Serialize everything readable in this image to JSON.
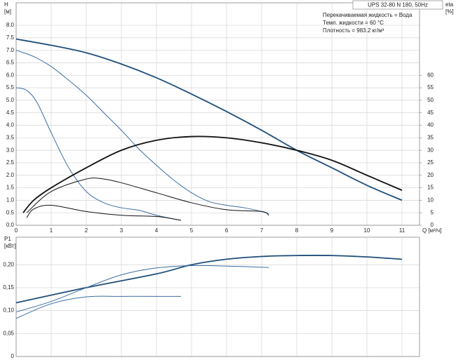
{
  "chart_data": [
    {
      "type": "line",
      "title": "UPS 32-80 N 180, 50Hz",
      "annotations": [
        "Перекачиваемая жидкость = Вода",
        "Темп. жидкости = 60 °C",
        "Плотность = 983.2 кг/м³"
      ],
      "xlabel": "Q [м³/ч]",
      "ylabel": [
        "H",
        "[м]"
      ],
      "y2label": [
        "eta",
        "[%]"
      ],
      "xlim": [
        0,
        11.5
      ],
      "xticks": [
        0,
        1,
        2,
        3,
        4,
        5,
        6,
        7,
        8,
        9,
        10,
        11
      ],
      "ylim": [
        0,
        8.9
      ],
      "yticks": [
        {
          "value": 0,
          "label": "0.0"
        },
        0.5,
        {
          "value": 1,
          "label": "1.0"
        },
        1.5,
        {
          "value": 2,
          "label": "2.0"
        },
        2.5,
        {
          "value": 3,
          "label": "3.0"
        },
        3.5,
        {
          "value": 4,
          "label": "4.0"
        },
        4.5,
        {
          "value": 5,
          "label": "5.0"
        },
        5.5,
        {
          "value": 6,
          "label": "6.0"
        },
        6.5,
        {
          "value": 7,
          "label": "7.0"
        },
        7.5,
        {
          "value": 8,
          "label": "8.0"
        }
      ],
      "y2lim": [
        0,
        89
      ],
      "y2ticks": [
        0,
        5,
        10,
        15,
        20,
        25,
        30,
        35,
        40,
        45,
        50,
        55,
        60
      ],
      "grid": true,
      "series": [
        {
          "color": "#1f4e79",
          "width": 1.8,
          "x": [
            0,
            1,
            2,
            3,
            4,
            5,
            6,
            7,
            8,
            9,
            10,
            11
          ],
          "values": [
            7.45,
            7.2,
            6.9,
            6.45,
            5.9,
            5.25,
            4.55,
            3.8,
            3.0,
            2.3,
            1.6,
            1.0
          ]
        },
        {
          "color": "#3a6ea5",
          "width": 1,
          "x": [
            0,
            0.5,
            1,
            1.5,
            2,
            2.5,
            3,
            3.5,
            4,
            4.5,
            5,
            5.5,
            6,
            6.5,
            7,
            7.2
          ],
          "values": [
            7.0,
            6.75,
            6.35,
            5.8,
            5.2,
            4.5,
            3.8,
            3.05,
            2.4,
            1.8,
            1.3,
            0.95,
            0.8,
            0.7,
            0.55,
            0.45
          ]
        },
        {
          "color": "#3a6ea5",
          "width": 1,
          "x": [
            0,
            0.3,
            0.6,
            1,
            1.5,
            2,
            2.5,
            3,
            3.5,
            4,
            4.5,
            4.7
          ],
          "values": [
            5.5,
            5.4,
            4.9,
            3.7,
            2.3,
            1.35,
            0.9,
            0.7,
            0.6,
            0.4,
            0.25,
            0.2
          ]
        },
        {
          "color": "#111111",
          "width": 1.8,
          "axis": "y2",
          "x": [
            0.2,
            0.5,
            1,
            2,
            3,
            4,
            5,
            6,
            7,
            8,
            9,
            10,
            11
          ],
          "values": [
            5,
            10,
            15,
            23,
            30,
            34,
            35.5,
            35,
            33,
            30,
            26,
            20,
            14
          ]
        },
        {
          "color": "#111111",
          "width": 1,
          "axis": "y2",
          "x": [
            0.3,
            1,
            2,
            2.5,
            3,
            4,
            5,
            6,
            7,
            7.2
          ],
          "values": [
            5,
            13.5,
            18.5,
            18.5,
            17,
            13,
            9,
            6.2,
            5.5,
            4
          ]
        },
        {
          "color": "#111111",
          "width": 1,
          "axis": "y2",
          "x": [
            0.3,
            0.5,
            1,
            2,
            3,
            4,
            4.5,
            4.7
          ],
          "values": [
            3,
            6.5,
            8,
            5.5,
            4,
            3.5,
            2.5,
            2
          ]
        }
      ]
    },
    {
      "type": "line",
      "ylabel": [
        "P1",
        "[кВт]"
      ],
      "xlim": [
        0,
        11.5
      ],
      "ylim": [
        0,
        0.26
      ],
      "yticks": [
        0,
        {
          "value": 0.05,
          "label": "0,05"
        },
        {
          "value": 0.1,
          "label": "0,10"
        },
        {
          "value": 0.15,
          "label": "0,15"
        },
        {
          "value": 0.2,
          "label": "0,20"
        }
      ],
      "grid": true,
      "series": [
        {
          "color": "#1f4e79",
          "width": 1.8,
          "x": [
            0,
            2,
            4,
            5,
            6,
            7,
            8,
            9,
            10,
            11
          ],
          "values": [
            0.117,
            0.15,
            0.18,
            0.2,
            0.212,
            0.218,
            0.22,
            0.22,
            0.217,
            0.212
          ]
        },
        {
          "color": "#3a6ea5",
          "width": 1,
          "x": [
            0,
            1,
            2,
            3,
            4,
            5,
            6,
            7.2
          ],
          "values": [
            0.097,
            0.12,
            0.15,
            0.178,
            0.193,
            0.198,
            0.197,
            0.194
          ]
        },
        {
          "color": "#3a6ea5",
          "width": 1,
          "x": [
            0,
            1,
            2,
            3,
            4,
            4.7
          ],
          "values": [
            0.083,
            0.115,
            0.13,
            0.131,
            0.131,
            0.131
          ]
        }
      ]
    }
  ]
}
